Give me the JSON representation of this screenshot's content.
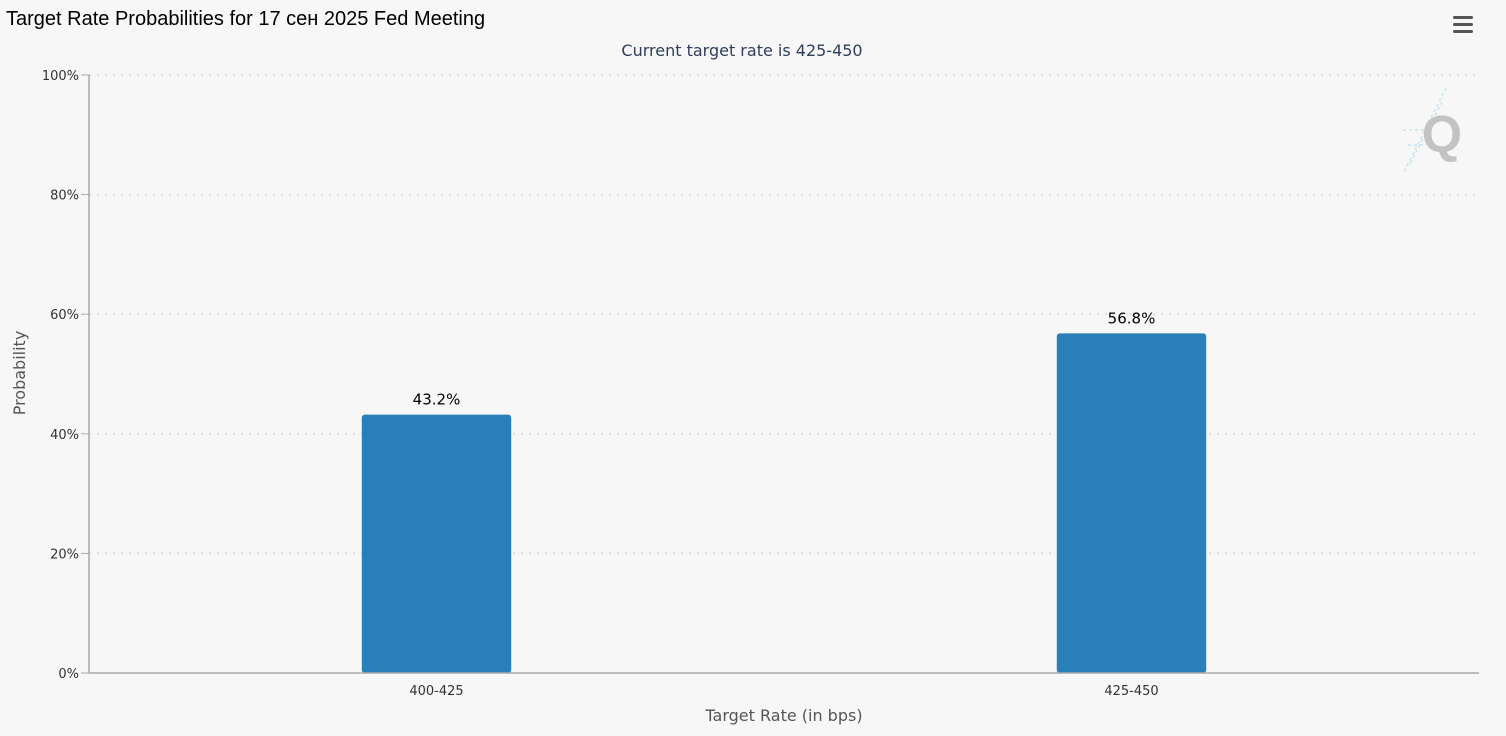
{
  "page": {
    "title": "Target Rate Probabilities for 17 сен 2025 Fed Meeting",
    "menu_icon": "hamburger-menu-icon",
    "watermark_icon": "q-logo-icon"
  },
  "colors": {
    "bar": "#2980b9",
    "background": "#f7f7f7",
    "grid": "#dddddd",
    "axis": "#aaaaaa"
  },
  "chart_data": {
    "type": "bar",
    "title": "Target Rate Probabilities for 17 сен 2025 Fed Meeting",
    "subtitle": "Current target rate is 425-450",
    "categories": [
      "400-425",
      "425-450"
    ],
    "values": [
      43.2,
      56.8
    ],
    "data_labels": [
      "43.2%",
      "56.8%"
    ],
    "xlabel": "Target Rate (in bps)",
    "ylabel": "Probability",
    "ylim": [
      0,
      100
    ],
    "yticks": [
      0,
      20,
      40,
      60,
      80,
      100
    ],
    "ytick_labels": [
      "0%",
      "20%",
      "40%",
      "60%",
      "80%",
      "100%"
    ],
    "grid": true,
    "legend": "none"
  }
}
